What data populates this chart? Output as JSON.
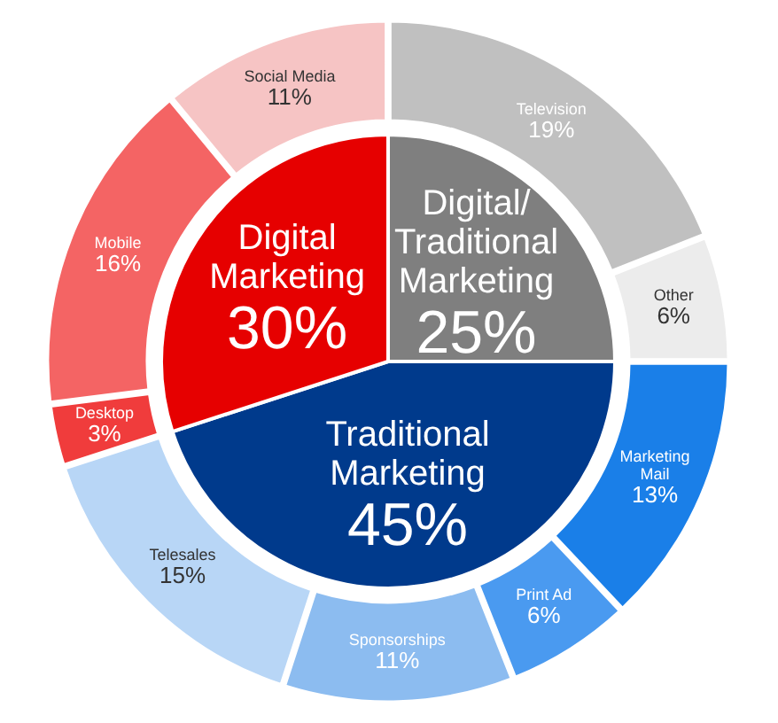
{
  "chart_data": [
    {
      "type": "pie",
      "categories": [
        "Digital/ Traditional Marketing",
        "Traditional Marketing",
        "Digital Marketing"
      ],
      "values": [
        25,
        45,
        30
      ],
      "colors": [
        "#7f7f7f",
        "#003a8c",
        "#e60000"
      ],
      "value_labels": [
        "25%",
        "45%",
        "30%"
      ]
    },
    {
      "type": "donut",
      "categories": [
        "Television",
        "Other",
        "Marketing Mail",
        "Print Ad",
        "Sponsorships",
        "Telesales",
        "Desktop",
        "Mobile",
        "Social Media"
      ],
      "values": [
        19,
        6,
        13,
        6,
        11,
        15,
        3,
        16,
        11
      ],
      "colors": [
        "#c0c0c0",
        "#ececec",
        "#1a7fe8",
        "#4a9af0",
        "#8cbcf0",
        "#b8d6f6",
        "#f03c3c",
        "#f46464",
        "#f6c4c4"
      ],
      "value_labels": [
        "19%",
        "6%",
        "13%",
        "6%",
        "11%",
        "15%",
        "3%",
        "16%",
        "11%"
      ]
    }
  ]
}
